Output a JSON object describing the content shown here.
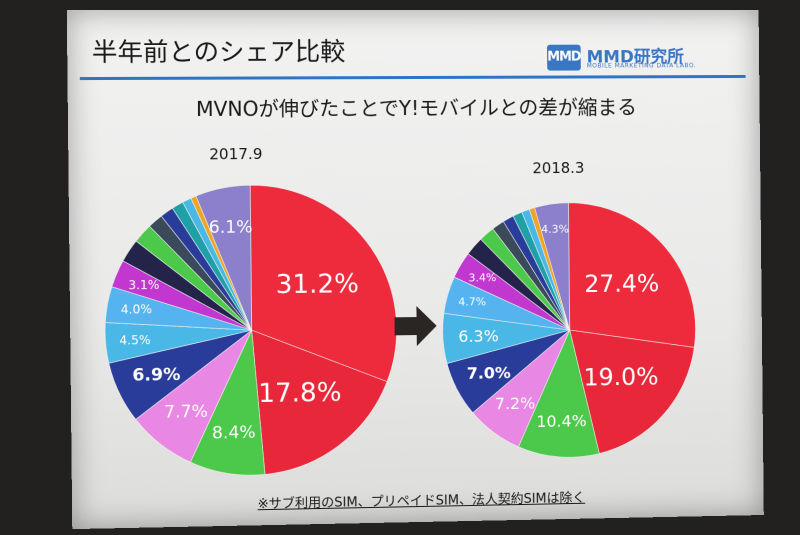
{
  "slide": {
    "title": "半年前とのシェア比較",
    "logo": {
      "mark": "MMD",
      "name": "MMD研究所",
      "subtitle": "MOBILE MARKETING DATA LABO."
    },
    "headline": "MVNOが伸びたことでY!モバイルとの差が縮まる",
    "footnote": "※サブ利用のSIM、プリペイドSIM、法人契約SIMは除く"
  },
  "colors": {
    "red": "#ee2a3d",
    "red2": "#e8283a",
    "green": "#4cc94b",
    "pink": "#e987e4",
    "navy": "#2a3c9a",
    "lightblue": "#4ab8e6",
    "skyblue": "#55b4f0",
    "magenta": "#c137cf",
    "dark": "#24244a",
    "teal": "#1fa0a6",
    "orange": "#f0a422",
    "purple": "#8c7fcc"
  },
  "chart_data": [
    {
      "type": "pie",
      "title": "2017.9",
      "slices": [
        {
          "value": 31.2,
          "label": "31.2%",
          "color": "#ee2a3d"
        },
        {
          "value": 17.8,
          "label": "17.8%",
          "color": "#e8283a"
        },
        {
          "value": 8.4,
          "label": "8.4%",
          "color": "#4cc94b"
        },
        {
          "value": 7.7,
          "label": "7.7%",
          "color": "#e987e4"
        },
        {
          "value": 6.9,
          "label": "6.9%",
          "color": "#2a3c9a"
        },
        {
          "value": 4.5,
          "label": "4.5%",
          "color": "#4ab8e6"
        },
        {
          "value": 4.0,
          "label": "4.0%",
          "color": "#55b4f0"
        },
        {
          "value": 3.1,
          "label": "3.1%",
          "color": "#c137cf"
        },
        {
          "value": 2.6,
          "label": "",
          "color": "#24244a"
        },
        {
          "value": 2.2,
          "label": "",
          "color": "#4cc94b"
        },
        {
          "value": 1.7,
          "label": "",
          "color": "#3b4a5a"
        },
        {
          "value": 1.5,
          "label": "",
          "color": "#2a3c9a"
        },
        {
          "value": 1.3,
          "label": "",
          "color": "#1fa0a6"
        },
        {
          "value": 1.0,
          "label": "",
          "color": "#4ab8e6"
        },
        {
          "value": 0.6,
          "label": "",
          "color": "#f0a422"
        },
        {
          "value": 6.1,
          "label": "6.1%",
          "color": "#8c7fcc"
        }
      ]
    },
    {
      "type": "pie",
      "title": "2018.3",
      "slices": [
        {
          "value": 27.4,
          "label": "27.4%",
          "color": "#ee2a3d"
        },
        {
          "value": 19.0,
          "label": "19.0%",
          "color": "#e8283a"
        },
        {
          "value": 10.4,
          "label": "10.4%",
          "color": "#4cc94b"
        },
        {
          "value": 7.2,
          "label": "7.2%",
          "color": "#e987e4"
        },
        {
          "value": 7.0,
          "label": "7.0%",
          "color": "#2a3c9a"
        },
        {
          "value": 6.3,
          "label": "6.3%",
          "color": "#4ab8e6"
        },
        {
          "value": 4.7,
          "label": "4.7%",
          "color": "#55b4f0"
        },
        {
          "value": 3.4,
          "label": "3.4%",
          "color": "#c137cf"
        },
        {
          "value": 2.4,
          "label": "",
          "color": "#24244a"
        },
        {
          "value": 2.0,
          "label": "",
          "color": "#4cc94b"
        },
        {
          "value": 1.6,
          "label": "",
          "color": "#3b4a5a"
        },
        {
          "value": 1.4,
          "label": "",
          "color": "#2a3c9a"
        },
        {
          "value": 1.2,
          "label": "",
          "color": "#1fa0a6"
        },
        {
          "value": 1.0,
          "label": "",
          "color": "#4ab8e6"
        },
        {
          "value": 0.7,
          "label": "",
          "color": "#f0a422"
        },
        {
          "value": 4.3,
          "label": "4.3%",
          "color": "#8c7fcc"
        }
      ]
    }
  ]
}
